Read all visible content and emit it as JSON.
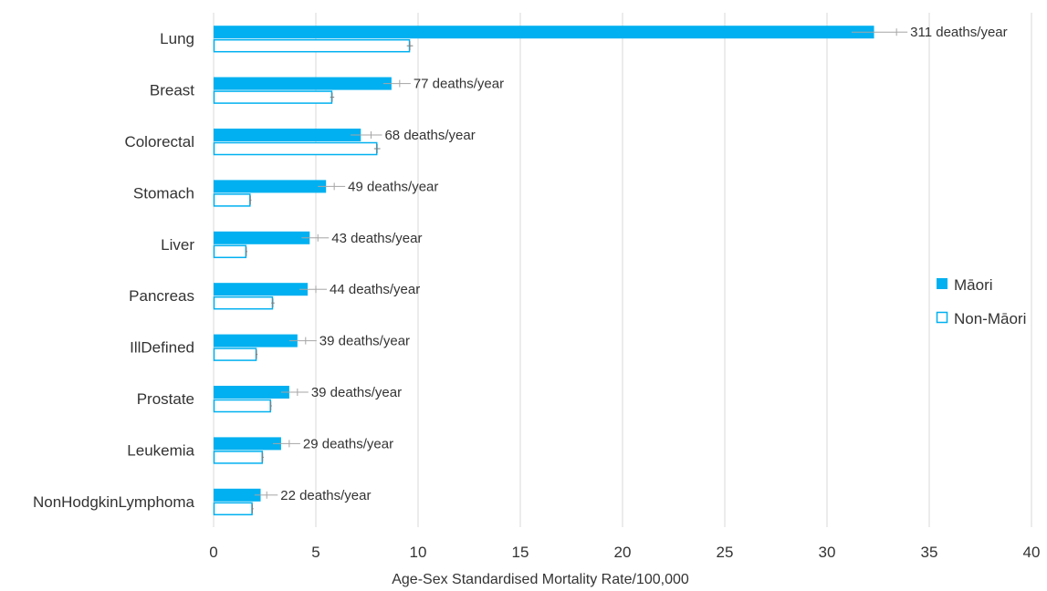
{
  "chart_data": {
    "type": "bar",
    "orientation": "horizontal",
    "categories": [
      "Lung",
      "Breast",
      "Colorectal",
      "Stomach",
      "Liver",
      "Pancreas",
      "IllDefined",
      "Prostate",
      "Leukemia",
      "NonHodgkinLymphoma"
    ],
    "series": [
      {
        "name": "Māori",
        "values": [
          32.3,
          8.7,
          7.2,
          5.5,
          4.7,
          4.6,
          4.1,
          3.7,
          3.3,
          2.3
        ],
        "errors": [
          1.1,
          0.4,
          0.5,
          0.4,
          0.4,
          0.4,
          0.4,
          0.4,
          0.4,
          0.3
        ],
        "data_labels": [
          "311 deaths/year",
          "77 deaths/year",
          "68 deaths/year",
          "49 deaths/year",
          "43 deaths/year",
          "44 deaths/year",
          "39 deaths/year",
          "39 deaths/year",
          "29 deaths/year",
          "22 deaths/year"
        ],
        "color": "#00b0f0",
        "style": "filled"
      },
      {
        "name": "Non-Māori",
        "values": [
          9.6,
          5.8,
          8.0,
          1.8,
          1.6,
          2.9,
          2.1,
          2.8,
          2.4,
          1.9
        ],
        "errors": [
          0.15,
          0.1,
          0.15,
          0.05,
          0.05,
          0.08,
          0.05,
          0.05,
          0.05,
          0.05
        ],
        "color": "#00b0f0",
        "style": "outline"
      }
    ],
    "xlabel": "Age-Sex Standardised Mortality Rate/100,000",
    "ylabel": "",
    "xlim": [
      0,
      40
    ],
    "xticks": [
      0,
      5,
      10,
      15,
      20,
      25,
      30,
      35,
      40
    ],
    "grid": "vertical",
    "legend": "right"
  }
}
